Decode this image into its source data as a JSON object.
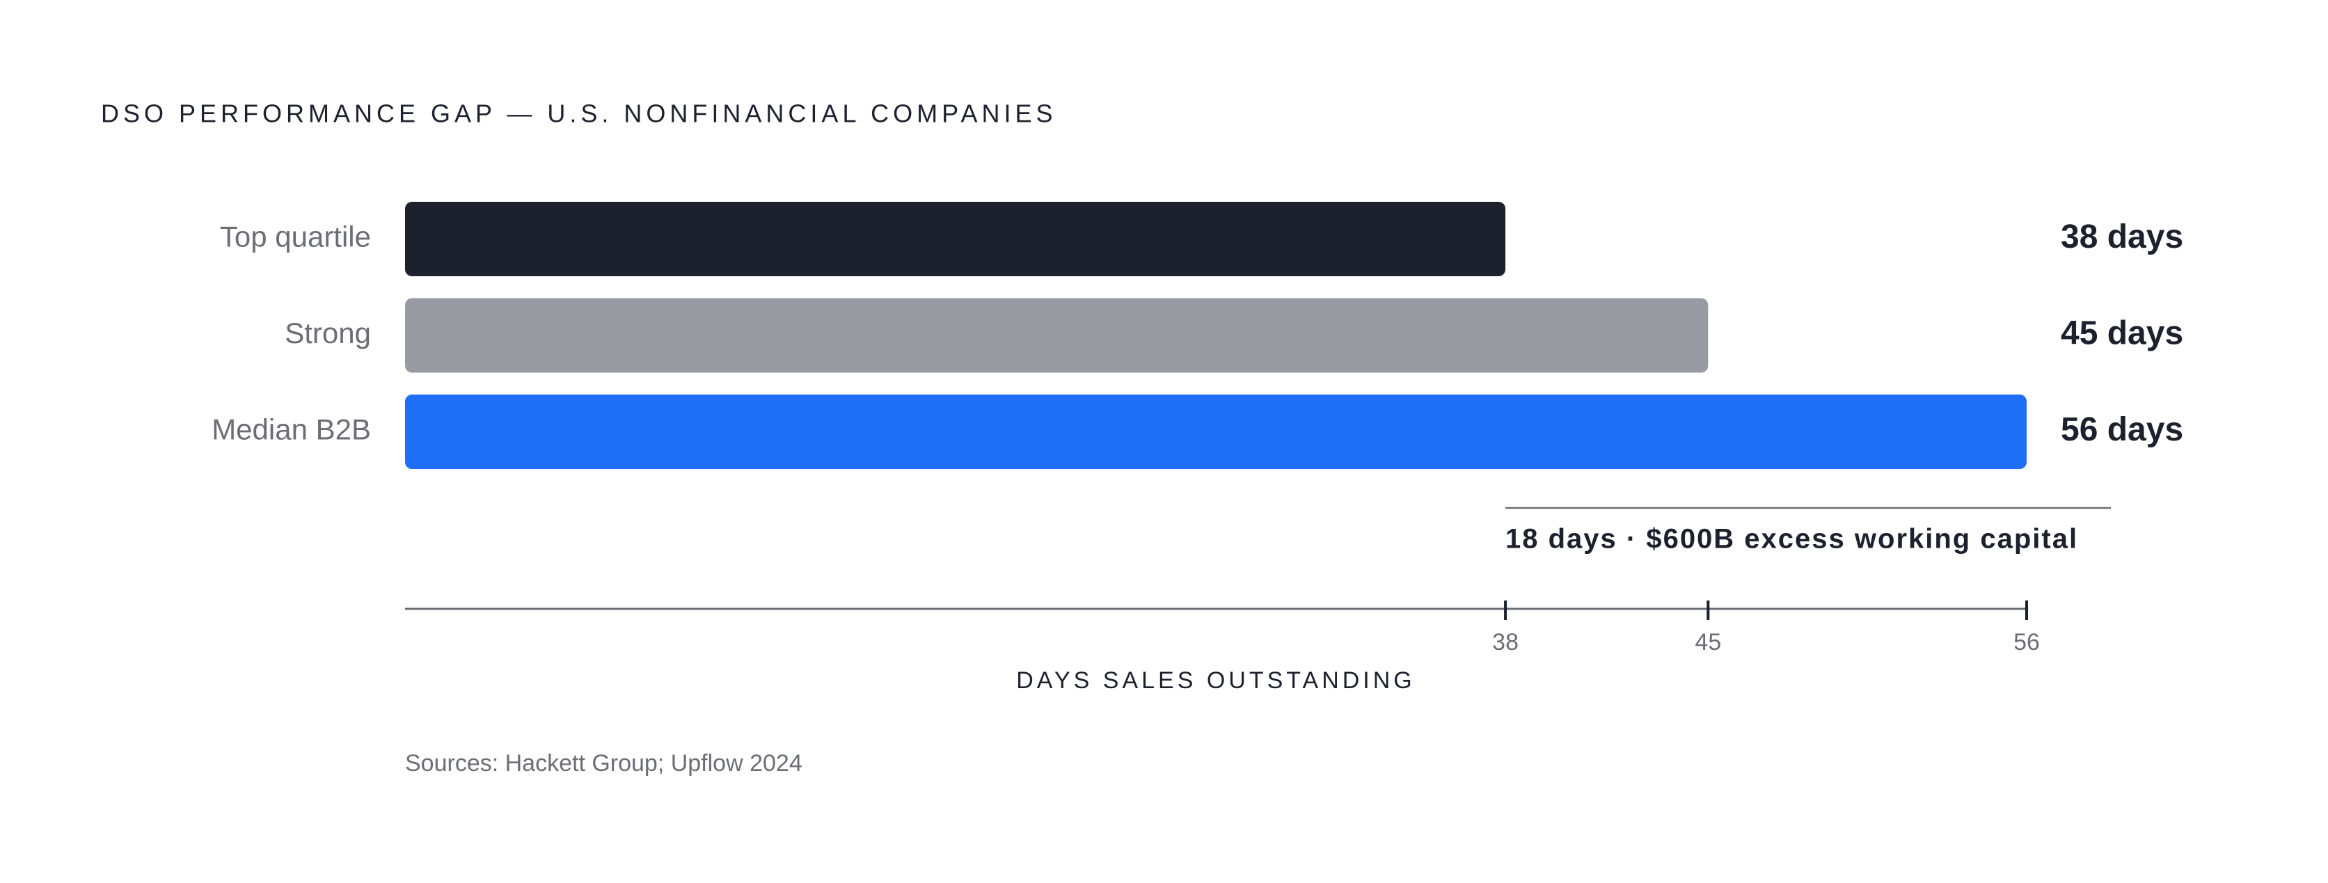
{
  "chart_data": {
    "type": "bar",
    "orientation": "horizontal",
    "title": "DSO PERFORMANCE GAP — U.S. NONFINANCIAL COMPANIES",
    "categories": [
      "Top quartile",
      "Strong",
      "Median B2B"
    ],
    "values": [
      38,
      45,
      56
    ],
    "value_labels": [
      "38 days",
      "45 days",
      "56 days"
    ],
    "colors": [
      "#1c212d",
      "#989ba2",
      "#1e6ff5"
    ],
    "xlim": [
      0,
      56
    ],
    "xticks": [
      38,
      45,
      56
    ],
    "x_label": "DAYS SALES OUTSTANDING",
    "annotation": "18 days · $600B excess working capital",
    "source": "Sources: Hackett Group; Upflow 2024"
  }
}
